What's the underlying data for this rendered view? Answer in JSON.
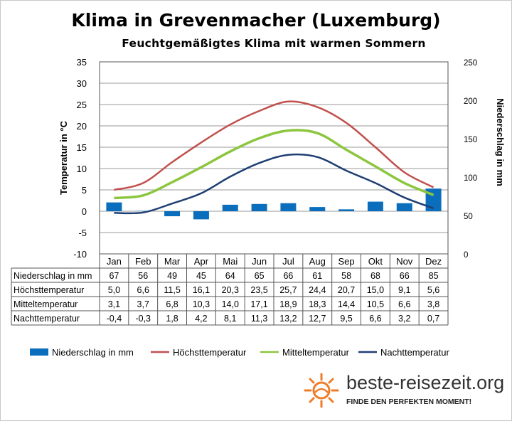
{
  "title": "Klima in Grevenmacher (Luxemburg)",
  "subtitle": "Feuchtgemäßigtes  Klima mit warmen Sommern",
  "chart_data": {
    "type": "bar+line",
    "categories": [
      "Jan",
      "Feb",
      "Mar",
      "Apr",
      "Mai",
      "Jun",
      "Jul",
      "Aug",
      "Sep",
      "Okt",
      "Nov",
      "Dez"
    ],
    "ylabel_left": "Temperatur in °C",
    "ylabel_right": "Niederschlag in mm",
    "ylim_left": [
      -10,
      35
    ],
    "ylim_right": [
      0,
      250
    ],
    "yticks_left": [
      "35",
      "30",
      "25",
      "20",
      "15",
      "10",
      "5",
      "0",
      "-5",
      "-10"
    ],
    "yticks_right": [
      "250",
      "200",
      "150",
      "100",
      "50",
      "0"
    ],
    "grid": true,
    "legend_position": "bottom",
    "series": [
      {
        "name": "Niederschlag in mm",
        "type": "bar",
        "axis": "right",
        "color": "#0a6ebd",
        "values": [
          67,
          56,
          49,
          45,
          64,
          65,
          66,
          61,
          58,
          68,
          66,
          85
        ],
        "labels": [
          "67",
          "56",
          "49",
          "45",
          "64",
          "65",
          "66",
          "61",
          "58",
          "68",
          "66",
          "85"
        ]
      },
      {
        "name": "Höchsttemperatur",
        "type": "line",
        "axis": "left",
        "color": "#c0504d",
        "values": [
          5.0,
          6.6,
          11.5,
          16.1,
          20.3,
          23.5,
          25.7,
          24.4,
          20.7,
          15.0,
          9.1,
          5.6
        ],
        "labels": [
          "5,0",
          "6,6",
          "11,5",
          "16,1",
          "20,3",
          "23,5",
          "25,7",
          "24,4",
          "20,7",
          "15,0",
          "9,1",
          "5,6"
        ]
      },
      {
        "name": "Mitteltemperatur",
        "type": "line",
        "axis": "left",
        "color": "#8cc63f",
        "values": [
          3.1,
          3.7,
          6.8,
          10.3,
          14.0,
          17.1,
          18.9,
          18.3,
          14.4,
          10.5,
          6.6,
          3.8
        ],
        "labels": [
          "3,1",
          "3,7",
          "6,8",
          "10,3",
          "14,0",
          "17,1",
          "18,9",
          "18,3",
          "14,4",
          "10,5",
          "6,6",
          "3,8"
        ]
      },
      {
        "name": "Nachttemperatur",
        "type": "line",
        "axis": "left",
        "color": "#1f3f73",
        "values": [
          -0.4,
          -0.3,
          1.8,
          4.2,
          8.1,
          11.3,
          13.2,
          12.7,
          9.5,
          6.6,
          3.2,
          0.7
        ],
        "labels": [
          "-0,4",
          "-0,3",
          "1,8",
          "4,2",
          "8,1",
          "11,3",
          "13,2",
          "12,7",
          "9,5",
          "6,6",
          "3,2",
          "0,7"
        ]
      }
    ]
  },
  "brand": {
    "name": "beste-reisezeit.org",
    "tagline": "FINDE DEN PERFEKTEN MOMENT!",
    "logo_icon": "sun-icon",
    "logo_color": "#f07c2a"
  }
}
